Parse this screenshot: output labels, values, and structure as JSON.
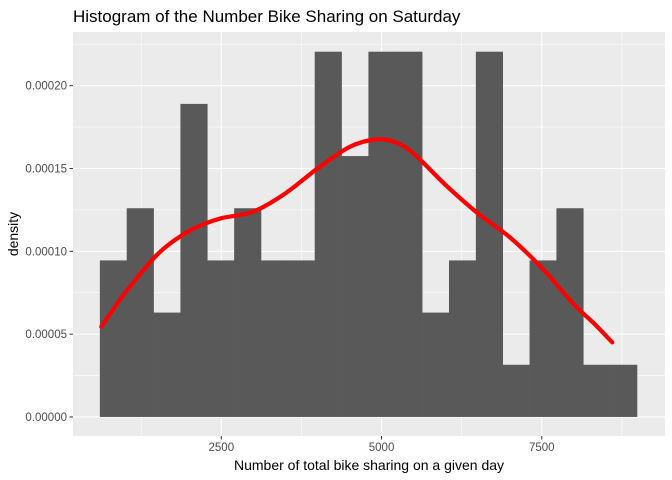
{
  "chart_data": {
    "type": "histogram",
    "title": "Histogram of the Number Bike Sharing on Saturday",
    "xlabel": "Number of total bike sharing on a given day",
    "ylabel": "density",
    "xlim": [
      186,
      9422
    ],
    "ylim": [
      -1.15e-05,
      0.0002324
    ],
    "x_ticks": [
      {
        "value": 2500,
        "label": "2500"
      },
      {
        "value": 5000,
        "label": "5000"
      },
      {
        "value": 7500,
        "label": "7500"
      }
    ],
    "y_ticks": [
      {
        "value": 0.0,
        "label": "0.00000"
      },
      {
        "value": 5e-05,
        "label": "0.00005"
      },
      {
        "value": 0.0001,
        "label": "0.00010"
      },
      {
        "value": 0.00015,
        "label": "0.00015"
      },
      {
        "value": 0.0002,
        "label": "0.00020"
      }
    ],
    "bins": [
      {
        "x0": 605,
        "x1": 1024,
        "density": 9.45e-05
      },
      {
        "x0": 1024,
        "x1": 1443,
        "density": 0.000126
      },
      {
        "x0": 1443,
        "x1": 1862,
        "density": 6.3e-05
      },
      {
        "x0": 1862,
        "x1": 2281,
        "density": 0.000189
      },
      {
        "x0": 2281,
        "x1": 2700,
        "density": 9.45e-05
      },
      {
        "x0": 2700,
        "x1": 3119,
        "density": 0.000126
      },
      {
        "x0": 3119,
        "x1": 3538,
        "density": 9.45e-05
      },
      {
        "x0": 3538,
        "x1": 3957,
        "density": 9.45e-05
      },
      {
        "x0": 3957,
        "x1": 4376,
        "density": 0.0002205
      },
      {
        "x0": 4376,
        "x1": 4795,
        "density": 0.0001575
      },
      {
        "x0": 4795,
        "x1": 5214,
        "density": 0.0002205
      },
      {
        "x0": 5214,
        "x1": 5633,
        "density": 0.0002205
      },
      {
        "x0": 5633,
        "x1": 6052,
        "density": 6.3e-05
      },
      {
        "x0": 6052,
        "x1": 6471,
        "density": 9.45e-05
      },
      {
        "x0": 6471,
        "x1": 6890,
        "density": 0.0002205
      },
      {
        "x0": 6890,
        "x1": 7309,
        "density": 3.15e-05
      },
      {
        "x0": 7309,
        "x1": 7728,
        "density": 9.45e-05
      },
      {
        "x0": 7728,
        "x1": 8147,
        "density": 0.000126
      },
      {
        "x0": 8147,
        "x1": 8566,
        "density": 3.15e-05
      },
      {
        "x0": 8566,
        "x1": 8985,
        "density": 3.15e-05
      }
    ],
    "density_curve": {
      "color": "#ff0000",
      "x": [
        627,
        1000,
        1500,
        1900,
        2200,
        2500,
        3000,
        3500,
        4000,
        4500,
        4900,
        5200,
        5500,
        6000,
        6500,
        7000,
        7500,
        8000,
        8300,
        8600
      ],
      "y": [
        5.45e-05,
        7.5e-05,
        9.8e-05,
        0.00011,
        0.000116,
        0.00012,
        0.000124,
        0.000135,
        0.00015,
        0.000163,
        0.0001675,
        0.000166,
        0.000159,
        0.00014,
        0.000123,
        0.0001085,
        9e-05,
        6.8e-05,
        5.7e-05,
        4.5e-05
      ]
    },
    "bar_color": "#595959",
    "panel_color": "#ebebeb",
    "grid_color": "#ffffff",
    "legend": "none"
  }
}
